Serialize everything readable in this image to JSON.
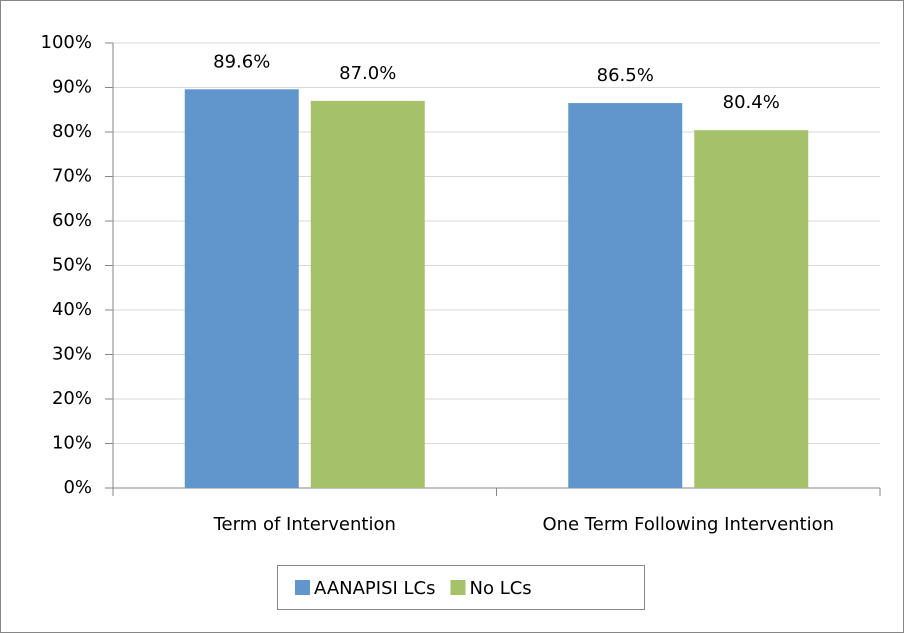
{
  "chart_data": {
    "type": "bar",
    "categories": [
      "Term of Intervention",
      "One Term Following Intervention"
    ],
    "series": [
      {
        "name": "AANAPISI LCs",
        "color": "#6096cb",
        "values": [
          89.6,
          86.5
        ],
        "value_labels": [
          "89.6%",
          "86.5%"
        ]
      },
      {
        "name": "No LCs",
        "color": "#a5c26a",
        "values": [
          87.0,
          80.4
        ],
        "value_labels": [
          "87.0%",
          "80.4%"
        ]
      }
    ],
    "ylim": [
      0,
      100
    ],
    "yticks": [
      {
        "value": 0,
        "label": "0%"
      },
      {
        "value": 10,
        "label": "10%"
      },
      {
        "value": 20,
        "label": "20%"
      },
      {
        "value": 30,
        "label": "30%"
      },
      {
        "value": 40,
        "label": "40%"
      },
      {
        "value": 50,
        "label": "50%"
      },
      {
        "value": 60,
        "label": "60%"
      },
      {
        "value": 70,
        "label": "70%"
      },
      {
        "value": 80,
        "label": "80%"
      },
      {
        "value": 90,
        "label": "90%"
      },
      {
        "value": 100,
        "label": "100%"
      }
    ],
    "grid": true,
    "legend": "bottom"
  }
}
